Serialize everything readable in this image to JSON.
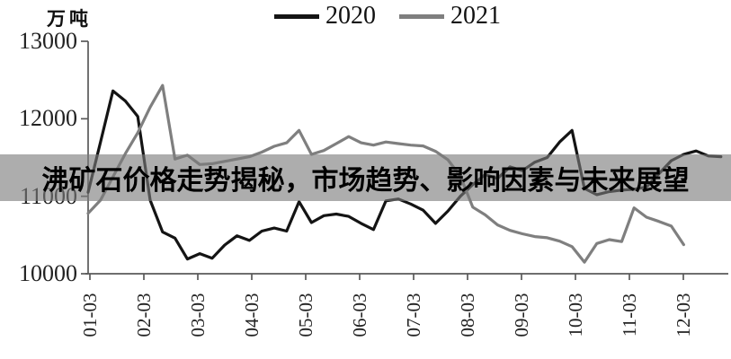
{
  "chart": {
    "unit_label": "万吨",
    "legend": [
      {
        "label": "2020",
        "color": "#141414"
      },
      {
        "label": "2021",
        "color": "#7f7f7f"
      }
    ]
  },
  "overlay": {
    "title": "沸矿石价格走势揭秘，市场趋势、影响因素与未来展望",
    "band_color": "rgba(123,123,123,0.62)",
    "text_color": "#000000"
  },
  "chart_data": {
    "type": "line",
    "title": "",
    "ylabel": "万吨",
    "xlabel": "",
    "ylim": [
      10000,
      13000
    ],
    "y_ticks": [
      13000,
      12000,
      11000,
      10000
    ],
    "x_tick_labels": [
      "01-03",
      "02-03",
      "03-03",
      "04-03",
      "05-03",
      "06-03",
      "07-03",
      "08-03",
      "09-03",
      "10-03",
      "11-03",
      "12-03"
    ],
    "x_sampling": "weekly",
    "grid": false,
    "legend_position": "top-center",
    "series": [
      {
        "name": "2020",
        "color": "#141414",
        "values": [
          11050,
          11700,
          12360,
          12230,
          12030,
          10950,
          10540,
          10460,
          10190,
          10260,
          10200,
          10370,
          10490,
          10430,
          10550,
          10590,
          10550,
          10930,
          10660,
          10750,
          10770,
          10740,
          10650,
          10570,
          10940,
          10965,
          10900,
          10820,
          10650,
          10810,
          11000,
          11150,
          11280,
          11230,
          11380,
          11330,
          11440,
          11500,
          11700,
          11850,
          11100,
          11020,
          11060,
          11080,
          11090,
          11120,
          11290,
          11460,
          11540,
          11585,
          11520,
          11510
        ]
      },
      {
        "name": "2021",
        "color": "#7f7f7f",
        "values": [
          10780,
          10950,
          11250,
          11550,
          11820,
          12150,
          12430,
          11480,
          11530,
          11410,
          11420,
          11450,
          11480,
          11510,
          11570,
          11645,
          11690,
          11850,
          11540,
          11590,
          11680,
          11770,
          11690,
          11660,
          11700,
          11680,
          11660,
          11650,
          11580,
          11470,
          11260,
          10860,
          10760,
          10630,
          10560,
          10515,
          10480,
          10465,
          10420,
          10350,
          10150,
          10390,
          10440,
          10415,
          10850,
          10730,
          10675,
          10615,
          10375
        ]
      }
    ]
  }
}
